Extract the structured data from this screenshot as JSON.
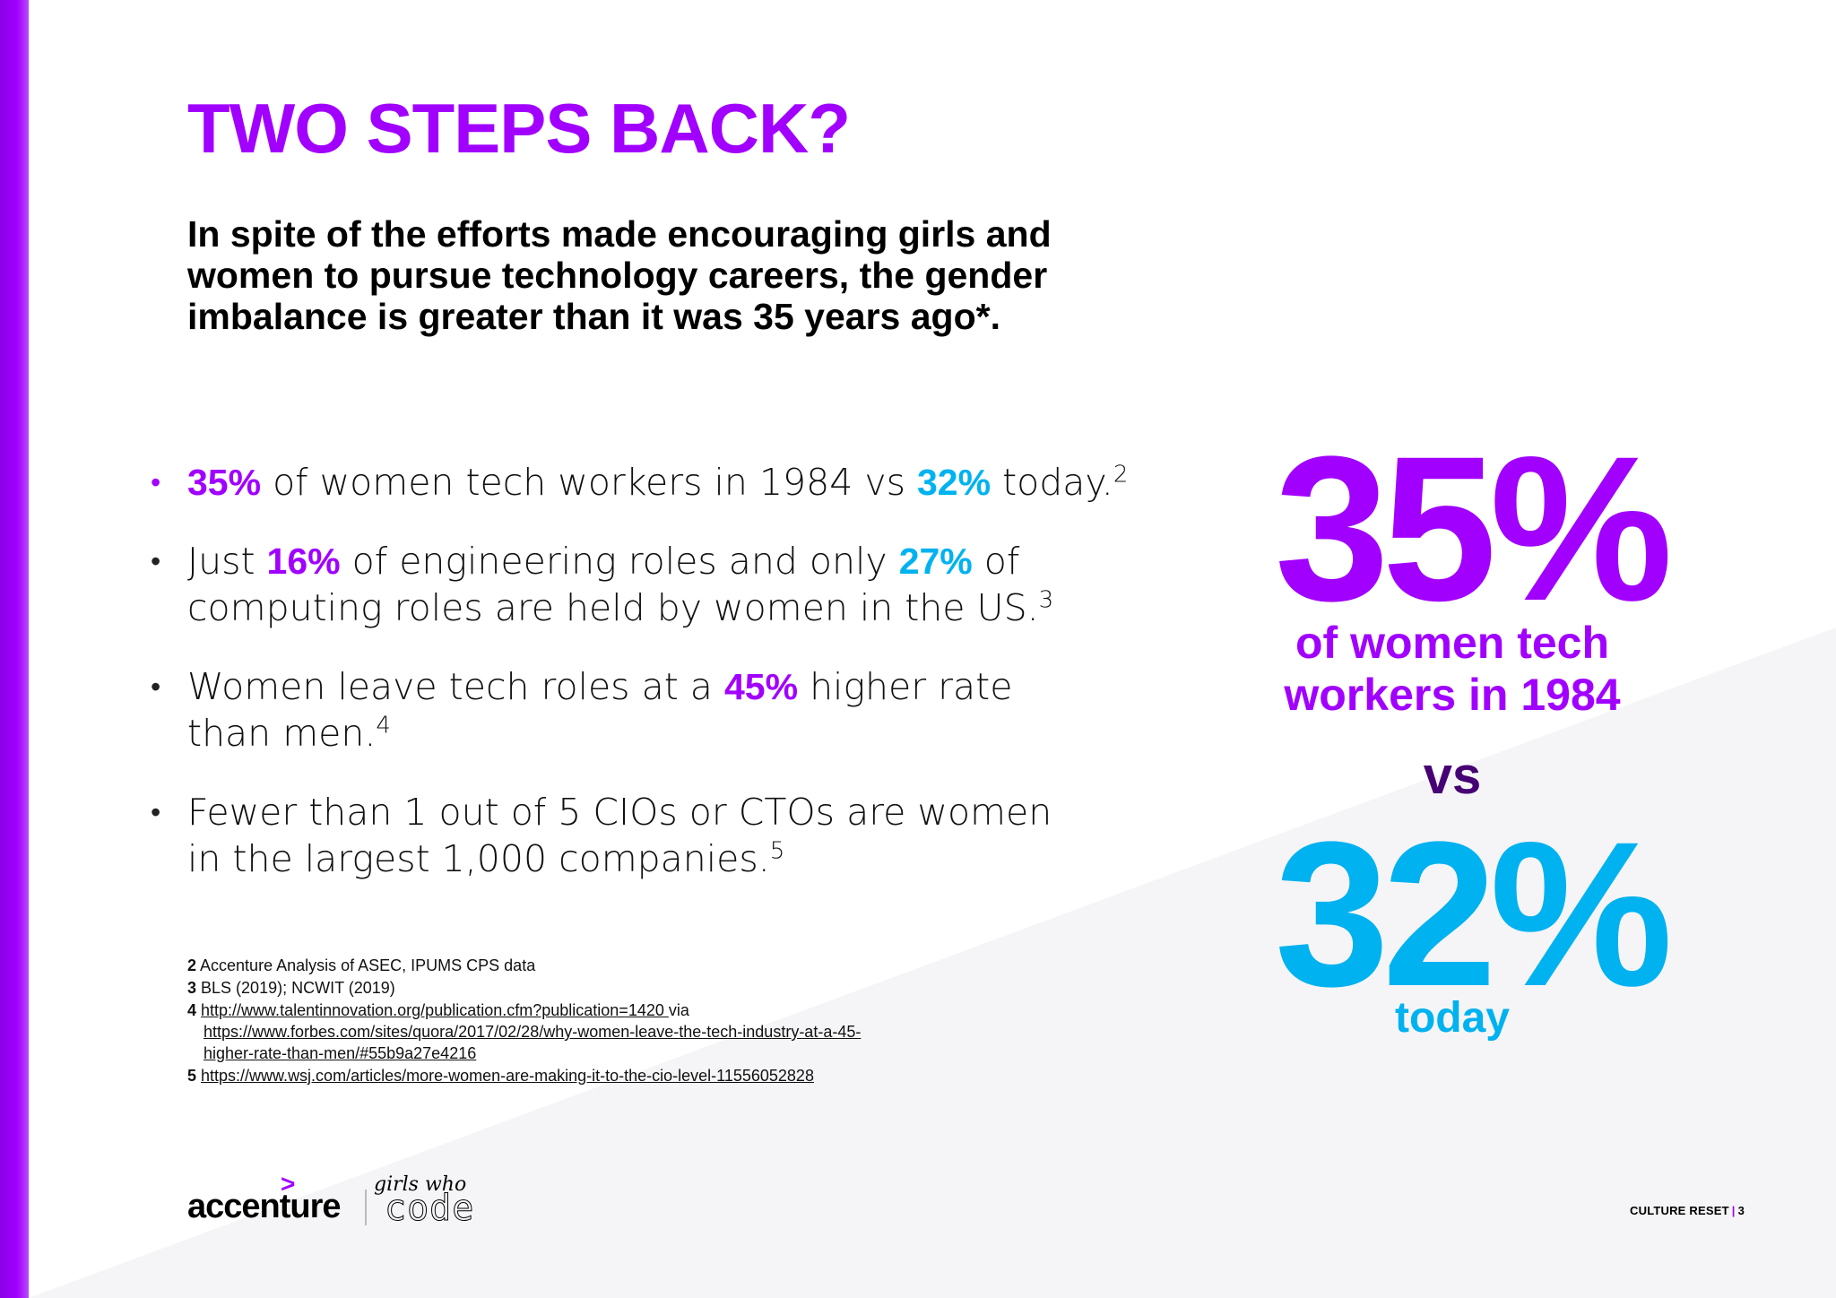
{
  "title": "TWO STEPS BACK?",
  "intro": "In spite of the efforts made encouraging girls and women to pursue technology careers, the gender imbalance is greater than it was 35 years ago*.",
  "bullets": [
    {
      "parts": [
        {
          "text": "35%",
          "style": "purple"
        },
        {
          "text": " of women tech workers in 1984 vs "
        },
        {
          "text": "32%",
          "style": "blue"
        },
        {
          "text": " today."
        },
        {
          "text": "2",
          "style": "sup"
        }
      ]
    },
    {
      "parts": [
        {
          "text": "Just "
        },
        {
          "text": "16%",
          "style": "purple"
        },
        {
          "text": " of engineering roles and only "
        },
        {
          "text": "27%",
          "style": "blue"
        },
        {
          "text": " of computing roles are held by women in the US."
        },
        {
          "text": "3",
          "style": "sup"
        }
      ]
    },
    {
      "parts": [
        {
          "text": "Women leave tech roles at a "
        },
        {
          "text": "45%",
          "style": "purple"
        },
        {
          "text": " higher rate than men."
        },
        {
          "text": "4",
          "style": "sup"
        }
      ]
    },
    {
      "parts": [
        {
          "text": "Fewer than 1 out of 5 CIOs or CTOs are women in the largest 1,000 companies."
        },
        {
          "text": "5",
          "style": "sup"
        }
      ]
    }
  ],
  "footnotes": {
    "fn2": {
      "num": "2",
      "text": "Accenture Analysis of ASEC, IPUMS CPS data"
    },
    "fn3": {
      "num": "3",
      "text": "BLS (2019); NCWIT (2019)"
    },
    "fn4": {
      "num": "4",
      "link1": "http://www.talentinnovation.org/publication.cfm?publication=1420 ",
      "via": "via",
      "link2": "https://www.forbes.com/sites/quora/2017/02/28/why-women-leave-the-tech-industry-at-a-45-higher-rate-than-men/#55b9a27e4216"
    },
    "fn5": {
      "num": "5",
      "link": "https://www.wsj.com/articles/more-women-are-making-it-to-the-cio-level-11556052828"
    }
  },
  "stats": {
    "stat_1984": "35%",
    "label_1984_line1": "of women tech",
    "label_1984_line2": "workers in 1984",
    "vs": "vs",
    "stat_today": "32%",
    "label_today": "today"
  },
  "logos": {
    "accenture": "accenture",
    "accenture_mark": ">",
    "gwc_script": "girls who",
    "gwc_code": "code"
  },
  "footer": {
    "label": "CULTURE RESET",
    "separator": "|",
    "page": "3"
  },
  "colors": {
    "purple": "#a100ff",
    "blue": "#00b2f0",
    "dark_purple": "#460073"
  }
}
